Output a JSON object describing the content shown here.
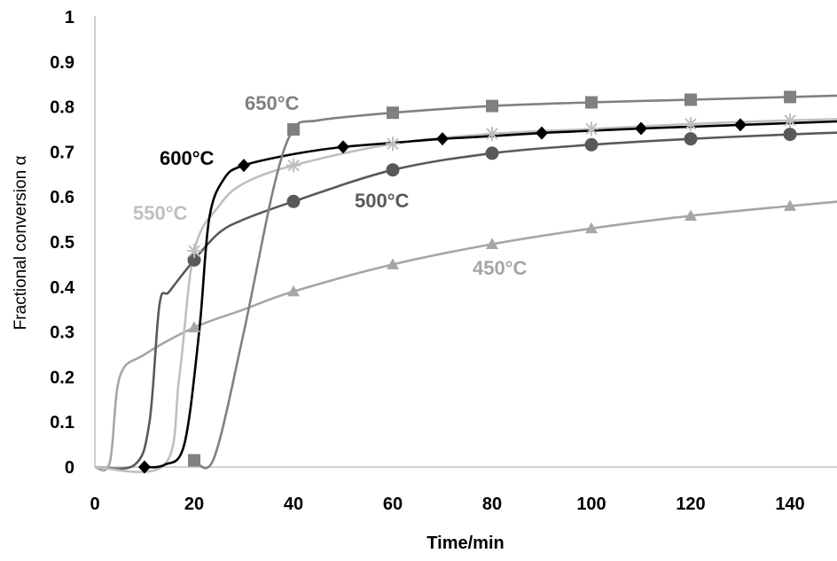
{
  "chart_data": {
    "type": "line",
    "title": "",
    "xlabel": "Time/min",
    "ylabel": "Fractional conversion α",
    "xlim": [
      0,
      150
    ],
    "ylim": [
      0,
      1
    ],
    "xticks": [
      "0",
      "20",
      "40",
      "60",
      "80",
      "100",
      "120",
      "140"
    ],
    "yticks": [
      "0",
      "0.1",
      "0.2",
      "0.3",
      "0.4",
      "0.5",
      "0.6",
      "0.7",
      "0.8",
      "0.9",
      "1"
    ],
    "grid": false,
    "legend": "inline labels",
    "series": [
      {
        "name": "450°C",
        "color": "#a6a6a6",
        "marker": "triangle",
        "curve": [
          [
            0,
            0
          ],
          [
            3,
            0.01
          ],
          [
            5,
            0.2
          ],
          [
            10,
            0.25
          ],
          [
            20,
            0.31
          ],
          [
            30,
            0.35
          ],
          [
            40,
            0.39
          ],
          [
            60,
            0.45
          ],
          [
            80,
            0.495
          ],
          [
            100,
            0.53
          ],
          [
            120,
            0.558
          ],
          [
            140,
            0.58
          ],
          [
            150,
            0.59
          ]
        ],
        "markers": [
          [
            20,
            0.31
          ],
          [
            40,
            0.39
          ],
          [
            60,
            0.45
          ],
          [
            80,
            0.495
          ],
          [
            100,
            0.53
          ],
          [
            120,
            0.558
          ],
          [
            140,
            0.58
          ]
        ]
      },
      {
        "name": "500°C",
        "color": "#595959",
        "marker": "circle",
        "curve": [
          [
            0,
            0
          ],
          [
            8,
            0.005
          ],
          [
            11,
            0.1
          ],
          [
            13,
            0.36
          ],
          [
            15,
            0.39
          ],
          [
            20,
            0.46
          ],
          [
            25,
            0.52
          ],
          [
            30,
            0.55
          ],
          [
            40,
            0.59
          ],
          [
            60,
            0.66
          ],
          [
            80,
            0.697
          ],
          [
            100,
            0.716
          ],
          [
            120,
            0.729
          ],
          [
            140,
            0.739
          ],
          [
            150,
            0.743
          ]
        ],
        "markers": [
          [
            20,
            0.46
          ],
          [
            40,
            0.59
          ],
          [
            60,
            0.66
          ],
          [
            80,
            0.697
          ],
          [
            100,
            0.716
          ],
          [
            120,
            0.729
          ],
          [
            140,
            0.739
          ]
        ]
      },
      {
        "name": "550°C",
        "color": "#bfbfbf",
        "marker": "asterisk",
        "curve": [
          [
            0,
            0
          ],
          [
            14,
            0.005
          ],
          [
            17,
            0.2
          ],
          [
            20,
            0.48
          ],
          [
            25,
            0.58
          ],
          [
            30,
            0.63
          ],
          [
            40,
            0.67
          ],
          [
            60,
            0.718
          ],
          [
            80,
            0.74
          ],
          [
            100,
            0.751
          ],
          [
            120,
            0.762
          ],
          [
            140,
            0.77
          ],
          [
            150,
            0.773
          ]
        ],
        "markers": [
          [
            20,
            0.48
          ],
          [
            40,
            0.67
          ],
          [
            60,
            0.718
          ],
          [
            80,
            0.74
          ],
          [
            100,
            0.751
          ],
          [
            120,
            0.762
          ],
          [
            140,
            0.77
          ]
        ]
      },
      {
        "name": "600°C",
        "color": "#000000",
        "marker": "diamond",
        "curve": [
          [
            10,
            0
          ],
          [
            14,
            0.005
          ],
          [
            18,
            0.05
          ],
          [
            21,
            0.3
          ],
          [
            23,
            0.55
          ],
          [
            26,
            0.64
          ],
          [
            30,
            0.67
          ],
          [
            40,
            0.695
          ],
          [
            50,
            0.711
          ],
          [
            60,
            0.72
          ],
          [
            70,
            0.729
          ],
          [
            80,
            0.735
          ],
          [
            90,
            0.742
          ],
          [
            100,
            0.747
          ],
          [
            110,
            0.752
          ],
          [
            120,
            0.756
          ],
          [
            130,
            0.76
          ],
          [
            140,
            0.764
          ],
          [
            150,
            0.768
          ]
        ],
        "markers": [
          [
            10,
            0
          ],
          [
            30,
            0.67
          ],
          [
            50,
            0.711
          ],
          [
            70,
            0.729
          ],
          [
            90,
            0.742
          ],
          [
            110,
            0.752
          ],
          [
            130,
            0.76
          ]
        ]
      },
      {
        "name": "650°C",
        "color": "#808080",
        "marker": "square",
        "curve": [
          [
            20,
            0.015
          ],
          [
            24,
            0.02
          ],
          [
            30,
            0.3
          ],
          [
            36,
            0.62
          ],
          [
            40,
            0.75
          ],
          [
            45,
            0.77
          ],
          [
            60,
            0.787
          ],
          [
            80,
            0.802
          ],
          [
            100,
            0.81
          ],
          [
            120,
            0.816
          ],
          [
            140,
            0.822
          ],
          [
            150,
            0.825
          ]
        ],
        "markers": [
          [
            20,
            0.015
          ],
          [
            40,
            0.75
          ],
          [
            60,
            0.787
          ],
          [
            80,
            0.802
          ],
          [
            100,
            0.81
          ],
          [
            120,
            0.816
          ],
          [
            140,
            0.822
          ]
        ]
      }
    ]
  }
}
